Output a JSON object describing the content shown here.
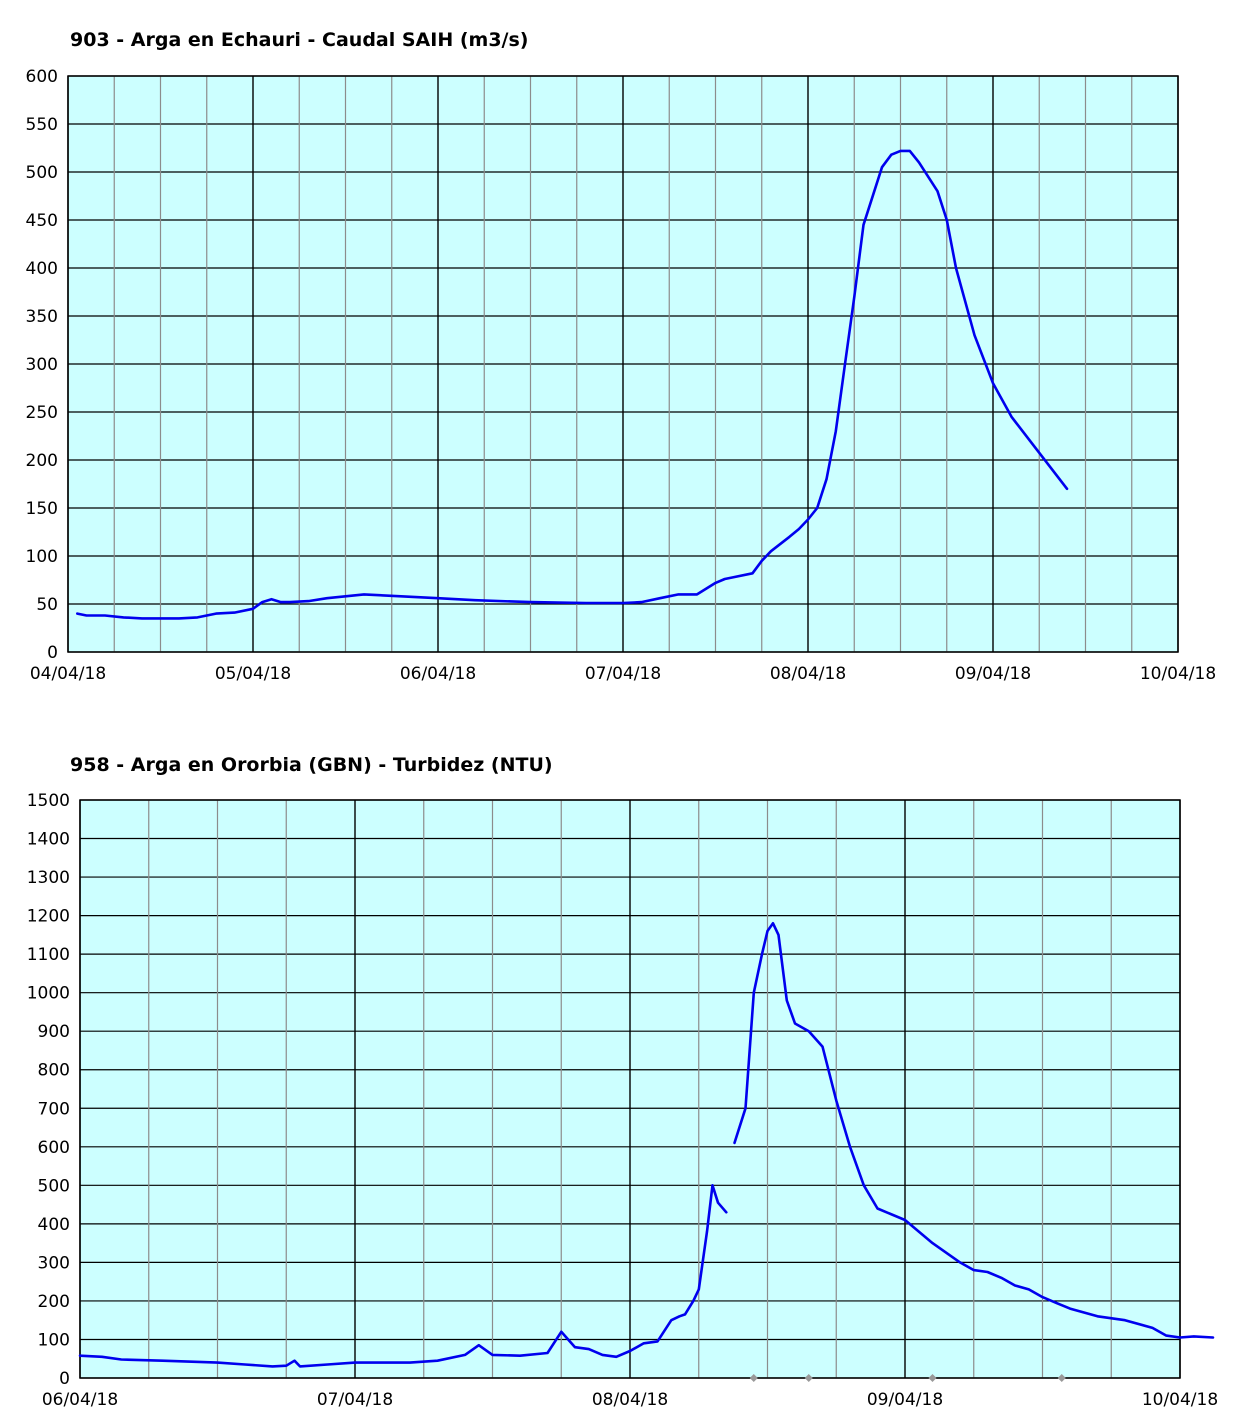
{
  "chart_data": [
    {
      "type": "line",
      "title": "903 - Arga en Echauri - Caudal SAIH (m3/s)",
      "xlabel": "",
      "ylabel": "",
      "x_tick_labels": [
        "04/04/18",
        "05/04/18",
        "06/04/18",
        "07/04/18",
        "08/04/18",
        "09/04/18",
        "10/04/18"
      ],
      "y_ticks": [
        0,
        50,
        100,
        150,
        200,
        250,
        300,
        350,
        400,
        450,
        500,
        550,
        600
      ],
      "xlim_days": [
        0,
        6
      ],
      "ylim": [
        0,
        600
      ],
      "grid": true,
      "minor_x_per_day": 4,
      "plot_background": "#ccffff",
      "line_color": "#0000ee",
      "series": [
        {
          "x_days": [
            0.05,
            0.1,
            0.2,
            0.3,
            0.4,
            0.5,
            0.6,
            0.7,
            0.8,
            0.9,
            1.0,
            1.05,
            1.1,
            1.15,
            1.2,
            1.3,
            1.4,
            1.5,
            1.6,
            1.8,
            2.0,
            2.2,
            2.5,
            2.8,
            3.0,
            3.1,
            3.2,
            3.3,
            3.4,
            3.5,
            3.55,
            3.6,
            3.7,
            3.75,
            3.8,
            3.9,
            3.95,
            4.0,
            4.05,
            4.1,
            4.15,
            4.2,
            4.25,
            4.3,
            4.4,
            4.45,
            4.5,
            4.55,
            4.6,
            4.7,
            4.75,
            4.8,
            4.9,
            5.0,
            5.1,
            5.2,
            5.3,
            5.4
          ],
          "values": [
            40,
            38,
            38,
            36,
            35,
            35,
            35,
            36,
            40,
            41,
            45,
            52,
            55,
            52,
            52,
            53,
            56,
            58,
            60,
            58,
            56,
            54,
            52,
            51,
            51,
            52,
            56,
            60,
            60,
            72,
            76,
            78,
            82,
            95,
            105,
            120,
            128,
            138,
            150,
            180,
            230,
            300,
            370,
            445,
            505,
            518,
            522,
            522,
            510,
            480,
            450,
            400,
            330,
            280,
            245,
            220,
            195,
            170
          ]
        }
      ]
    },
    {
      "type": "line",
      "title": "958 - Arga en Ororbia (GBN) - Turbidez (NTU)",
      "xlabel": "",
      "ylabel": "",
      "x_tick_labels": [
        "06/04/18",
        "07/04/18",
        "08/04/18",
        "09/04/18",
        "10/04/18"
      ],
      "y_ticks": [
        0,
        100,
        200,
        300,
        400,
        500,
        600,
        700,
        800,
        900,
        1000,
        1100,
        1200,
        1300,
        1400,
        1500
      ],
      "xlim_days": [
        0,
        4
      ],
      "ylim": [
        0,
        1500
      ],
      "grid": true,
      "minor_x_per_day": 4,
      "plot_background": "#ccffff",
      "line_color": "#0000ee",
      "series": [
        {
          "segments": [
            {
              "x_days": [
                0.0,
                0.08,
                0.15,
                0.3,
                0.5,
                0.6,
                0.7,
                0.75,
                0.78,
                0.8,
                0.9,
                1.0,
                1.2,
                1.3,
                1.4,
                1.45,
                1.5,
                1.6,
                1.7,
                1.75,
                1.8,
                1.85,
                1.9,
                1.95,
                2.0,
                2.05,
                2.1,
                2.15,
                2.18,
                2.2,
                2.23,
                2.25,
                2.28,
                2.3,
                2.32,
                2.35
              ],
              "values": [
                58,
                55,
                48,
                45,
                40,
                35,
                30,
                32,
                45,
                30,
                35,
                40,
                40,
                45,
                60,
                85,
                60,
                58,
                65,
                120,
                80,
                75,
                60,
                55,
                70,
                90,
                95,
                150,
                160,
                165,
                200,
                230,
                380,
                500,
                455,
                430
              ]
            },
            {
              "x_days": [
                2.38,
                2.42,
                2.45,
                2.48,
                2.5,
                2.52,
                2.54,
                2.57,
                2.6,
                2.65,
                2.7,
                2.75,
                2.8,
                2.85,
                2.9,
                3.0,
                3.1,
                3.2,
                3.25,
                3.3,
                3.35,
                3.4,
                3.45,
                3.5,
                3.55,
                3.6,
                3.7,
                3.8,
                3.9,
                3.95,
                4.0,
                4.05,
                4.12
              ],
              "values": [
                610,
                700,
                1000,
                1100,
                1160,
                1180,
                1150,
                980,
                920,
                900,
                860,
                720,
                600,
                500,
                440,
                410,
                350,
                300,
                280,
                275,
                260,
                240,
                230,
                210,
                195,
                180,
                160,
                150,
                130,
                110,
                105,
                108,
                105
              ]
            }
          ]
        }
      ],
      "markers": {
        "color": "#999999",
        "x_days": [
          2.45,
          2.65,
          3.1,
          3.57
        ],
        "y": 0
      }
    }
  ]
}
